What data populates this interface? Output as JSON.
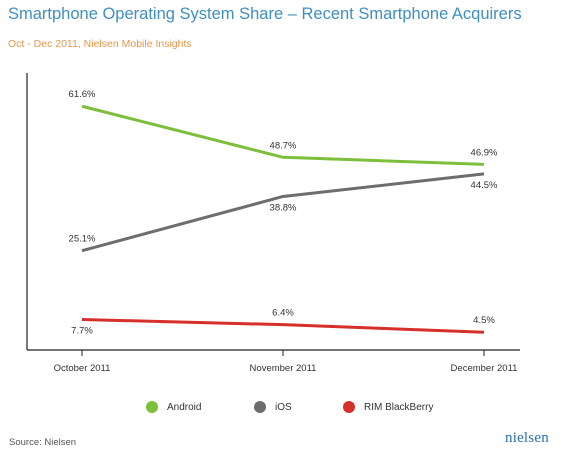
{
  "title": "Smartphone Operating System Share – Recent Smartphone Acquirers",
  "subtitle": "Oct - Dec 2011, Nielsen Mobile Insights",
  "source": "Source: Nielsen",
  "logo_text": "nielsen",
  "chart_data": {
    "type": "line",
    "categories": [
      "October 2011",
      "November 2011",
      "December 2011"
    ],
    "ylim": [
      0,
      70
    ],
    "grid": false,
    "legend_position": "bottom",
    "series": [
      {
        "name": "Android",
        "color": "#7dbf3c",
        "values": [
          61.6,
          48.7,
          46.9
        ],
        "labels": [
          "61.6%",
          "48.7%",
          "46.9%"
        ]
      },
      {
        "name": "iOS",
        "color": "#6d6d6d",
        "values": [
          25.1,
          38.8,
          44.5
        ],
        "labels": [
          "25.1%",
          "38.8%",
          "44.5%"
        ]
      },
      {
        "name": "RIM BlackBerry",
        "color": "#d6302b",
        "values": [
          7.7,
          6.4,
          4.5
        ],
        "labels": [
          "7.7%",
          "6.4%",
          "4.5%"
        ]
      }
    ]
  }
}
